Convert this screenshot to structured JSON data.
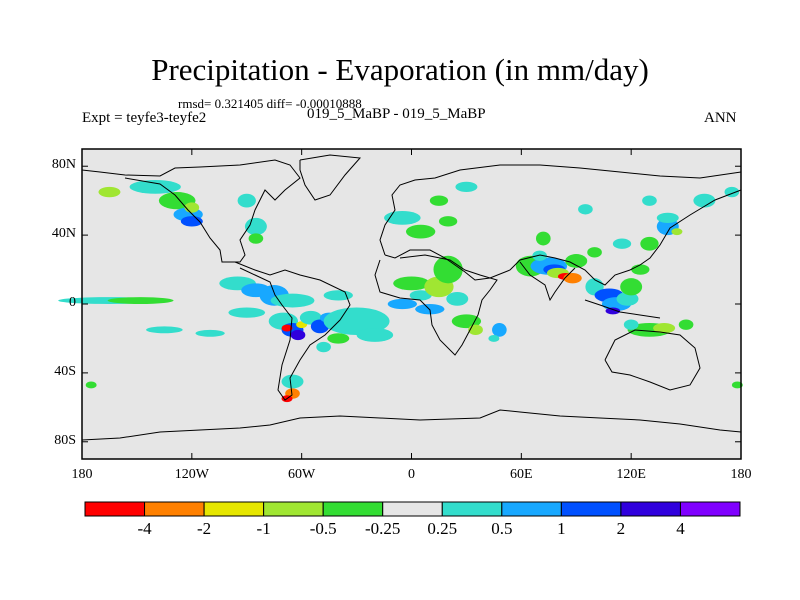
{
  "chart_data": {
    "type": "heatmap",
    "title": "Precipitation - Evaporation (in mm/day)",
    "stats": "rmsd= 0.321405 diff= -0.00010888",
    "left_label": "Expt = teyfe3-teyfe2",
    "center_label": "019_5_MaBP - 019_5_MaBP",
    "right_label": "ANN",
    "x_ticks": [
      "180",
      "120W",
      "60W",
      "0",
      "60E",
      "120E",
      "180"
    ],
    "y_ticks": [
      "80N",
      "40N",
      "0",
      "40S",
      "80S"
    ],
    "xlim": [
      -180,
      180
    ],
    "ylim": [
      -90,
      90
    ],
    "colorbar": {
      "labels": [
        "-4",
        "-2",
        "-1",
        "-0.5",
        "-0.25",
        "0.25",
        "0.5",
        "1",
        "2",
        "4"
      ],
      "colors": [
        "#ff0000",
        "#ff8000",
        "#e6e600",
        "#a0e632",
        "#33dd33",
        "#e6e6e6",
        "#33ddcc",
        "#18a8ff",
        "#0050ff",
        "#3000dd",
        "#8000ff"
      ]
    },
    "features": [
      {
        "lon": -165,
        "lat": 2,
        "w": 28,
        "h": 2,
        "cat": 6
      },
      {
        "lon": -148,
        "lat": 2,
        "w": 18,
        "h": 2,
        "cat": 4
      },
      {
        "lon": -135,
        "lat": -15,
        "w": 10,
        "h": 2,
        "cat": 6
      },
      {
        "lon": -110,
        "lat": -17,
        "w": 8,
        "h": 2,
        "cat": 6
      },
      {
        "lon": -140,
        "lat": 68,
        "w": 14,
        "h": 4,
        "cat": 6
      },
      {
        "lon": -128,
        "lat": 60,
        "w": 10,
        "h": 5,
        "cat": 4
      },
      {
        "lon": -122,
        "lat": 52,
        "w": 8,
        "h": 4,
        "cat": 7
      },
      {
        "lon": -120,
        "lat": 48,
        "w": 6,
        "h": 3,
        "cat": 8
      },
      {
        "lon": -165,
        "lat": 65,
        "w": 6,
        "h": 3,
        "cat": 3
      },
      {
        "lon": -120,
        "lat": 56,
        "w": 4,
        "h": 3,
        "cat": 3
      },
      {
        "lon": -90,
        "lat": 60,
        "w": 5,
        "h": 4,
        "cat": 6
      },
      {
        "lon": -85,
        "lat": 45,
        "w": 6,
        "h": 5,
        "cat": 6
      },
      {
        "lon": -85,
        "lat": 38,
        "w": 4,
        "h": 3,
        "cat": 4
      },
      {
        "lon": -95,
        "lat": 12,
        "w": 10,
        "h": 4,
        "cat": 6
      },
      {
        "lon": -85,
        "lat": 8,
        "w": 8,
        "h": 4,
        "cat": 7
      },
      {
        "lon": -90,
        "lat": -5,
        "w": 10,
        "h": 3,
        "cat": 6
      },
      {
        "lon": -75,
        "lat": 5,
        "w": 8,
        "h": 6,
        "cat": 7
      },
      {
        "lon": -65,
        "lat": 2,
        "w": 12,
        "h": 4,
        "cat": 6
      },
      {
        "lon": -70,
        "lat": -10,
        "w": 8,
        "h": 5,
        "cat": 6
      },
      {
        "lon": -65,
        "lat": -15,
        "w": 6,
        "h": 4,
        "cat": 8
      },
      {
        "lon": -62,
        "lat": -18,
        "w": 4,
        "h": 3,
        "cat": 9
      },
      {
        "lon": -68,
        "lat": -14,
        "w": 3,
        "h": 2,
        "cat": 0
      },
      {
        "lon": -60,
        "lat": -12,
        "w": 3,
        "h": 2,
        "cat": 2
      },
      {
        "lon": -55,
        "lat": -8,
        "w": 6,
        "h": 4,
        "cat": 6
      },
      {
        "lon": -50,
        "lat": -13,
        "w": 5,
        "h": 4,
        "cat": 8
      },
      {
        "lon": -45,
        "lat": -8,
        "w": 5,
        "h": 3,
        "cat": 7
      },
      {
        "lon": -40,
        "lat": -20,
        "w": 6,
        "h": 3,
        "cat": 4
      },
      {
        "lon": -48,
        "lat": -25,
        "w": 4,
        "h": 3,
        "cat": 6
      },
      {
        "lon": -65,
        "lat": -45,
        "w": 6,
        "h": 4,
        "cat": 6
      },
      {
        "lon": -65,
        "lat": -52,
        "w": 4,
        "h": 3,
        "cat": 1
      },
      {
        "lon": -68,
        "lat": -55,
        "w": 3,
        "h": 2,
        "cat": 0
      },
      {
        "lon": -175,
        "lat": -47,
        "w": 3,
        "h": 2,
        "cat": 4
      },
      {
        "lon": -40,
        "lat": 5,
        "w": 8,
        "h": 3,
        "cat": 6
      },
      {
        "lon": -30,
        "lat": -10,
        "w": 18,
        "h": 8,
        "cat": 6
      },
      {
        "lon": -20,
        "lat": -18,
        "w": 10,
        "h": 4,
        "cat": 6
      },
      {
        "lon": -5,
        "lat": 0,
        "w": 8,
        "h": 3,
        "cat": 7
      },
      {
        "lon": 10,
        "lat": -3,
        "w": 8,
        "h": 3,
        "cat": 7
      },
      {
        "lon": 5,
        "lat": 5,
        "w": 6,
        "h": 3,
        "cat": 6
      },
      {
        "lon": 0,
        "lat": 12,
        "w": 10,
        "h": 4,
        "cat": 4
      },
      {
        "lon": 15,
        "lat": 10,
        "w": 8,
        "h": 6,
        "cat": 3
      },
      {
        "lon": 20,
        "lat": 20,
        "w": 8,
        "h": 8,
        "cat": 4
      },
      {
        "lon": 25,
        "lat": 3,
        "w": 6,
        "h": 4,
        "cat": 6
      },
      {
        "lon": 30,
        "lat": -10,
        "w": 8,
        "h": 4,
        "cat": 4
      },
      {
        "lon": 35,
        "lat": -15,
        "w": 4,
        "h": 3,
        "cat": 3
      },
      {
        "lon": 48,
        "lat": -15,
        "w": 4,
        "h": 4,
        "cat": 7
      },
      {
        "lon": 45,
        "lat": -20,
        "w": 3,
        "h": 2,
        "cat": 6
      },
      {
        "lon": -5,
        "lat": 50,
        "w": 10,
        "h": 4,
        "cat": 6
      },
      {
        "lon": 5,
        "lat": 42,
        "w": 8,
        "h": 4,
        "cat": 4
      },
      {
        "lon": 15,
        "lat": 60,
        "w": 5,
        "h": 3,
        "cat": 4
      },
      {
        "lon": 30,
        "lat": 68,
        "w": 6,
        "h": 3,
        "cat": 6
      },
      {
        "lon": 20,
        "lat": 48,
        "w": 5,
        "h": 3,
        "cat": 4
      },
      {
        "lon": 65,
        "lat": 22,
        "w": 8,
        "h": 6,
        "cat": 4
      },
      {
        "lon": 75,
        "lat": 22,
        "w": 10,
        "h": 5,
        "cat": 7
      },
      {
        "lon": 78,
        "lat": 20,
        "w": 6,
        "h": 3,
        "cat": 8
      },
      {
        "lon": 80,
        "lat": 18,
        "w": 6,
        "h": 3,
        "cat": 3
      },
      {
        "lon": 84,
        "lat": 16,
        "w": 4,
        "h": 2,
        "cat": 0
      },
      {
        "lon": 88,
        "lat": 15,
        "w": 5,
        "h": 3,
        "cat": 1
      },
      {
        "lon": 70,
        "lat": 28,
        "w": 4,
        "h": 3,
        "cat": 6
      },
      {
        "lon": 90,
        "lat": 25,
        "w": 6,
        "h": 4,
        "cat": 4
      },
      {
        "lon": 72,
        "lat": 38,
        "w": 4,
        "h": 4,
        "cat": 4
      },
      {
        "lon": 100,
        "lat": 30,
        "w": 4,
        "h": 3,
        "cat": 4
      },
      {
        "lon": 100,
        "lat": 10,
        "w": 5,
        "h": 5,
        "cat": 6
      },
      {
        "lon": 108,
        "lat": 5,
        "w": 8,
        "h": 4,
        "cat": 8
      },
      {
        "lon": 112,
        "lat": 0,
        "w": 8,
        "h": 4,
        "cat": 7
      },
      {
        "lon": 118,
        "lat": 3,
        "w": 6,
        "h": 4,
        "cat": 6
      },
      {
        "lon": 110,
        "lat": -4,
        "w": 4,
        "h": 2,
        "cat": 9
      },
      {
        "lon": 120,
        "lat": 10,
        "w": 6,
        "h": 5,
        "cat": 4
      },
      {
        "lon": 125,
        "lat": 20,
        "w": 5,
        "h": 3,
        "cat": 4
      },
      {
        "lon": 115,
        "lat": 35,
        "w": 5,
        "h": 3,
        "cat": 6
      },
      {
        "lon": 130,
        "lat": 35,
        "w": 5,
        "h": 4,
        "cat": 4
      },
      {
        "lon": 140,
        "lat": 45,
        "w": 6,
        "h": 5,
        "cat": 7
      },
      {
        "lon": 140,
        "lat": 50,
        "w": 6,
        "h": 3,
        "cat": 6
      },
      {
        "lon": 145,
        "lat": 42,
        "w": 3,
        "h": 2,
        "cat": 3
      },
      {
        "lon": 160,
        "lat": 60,
        "w": 6,
        "h": 4,
        "cat": 6
      },
      {
        "lon": 175,
        "lat": 65,
        "w": 4,
        "h": 3,
        "cat": 6
      },
      {
        "lon": 130,
        "lat": -15,
        "w": 12,
        "h": 4,
        "cat": 4
      },
      {
        "lon": 138,
        "lat": -14,
        "w": 6,
        "h": 3,
        "cat": 3
      },
      {
        "lon": 120,
        "lat": -12,
        "w": 4,
        "h": 3,
        "cat": 6
      },
      {
        "lon": 150,
        "lat": -12,
        "w": 4,
        "h": 3,
        "cat": 4
      },
      {
        "lon": 178,
        "lat": -47,
        "w": 3,
        "h": 2,
        "cat": 4
      },
      {
        "lon": 130,
        "lat": 60,
        "w": 4,
        "h": 3,
        "cat": 6
      },
      {
        "lon": 95,
        "lat": 55,
        "w": 4,
        "h": 3,
        "cat": 6
      }
    ]
  }
}
